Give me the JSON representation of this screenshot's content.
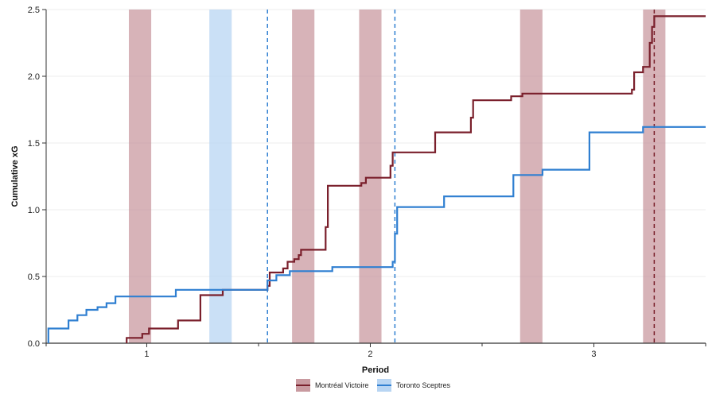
{
  "chart_data": {
    "type": "line",
    "xlabel": "Period",
    "ylabel": "Cumulative xG",
    "xlim": [
      0.55,
      3.5
    ],
    "ylim": [
      0,
      2.5
    ],
    "xticks": [
      1,
      2,
      3
    ],
    "yticks": [
      0.0,
      0.5,
      1.0,
      1.5,
      2.0,
      2.5
    ],
    "ytick_labels": [
      "0.0",
      "0.5",
      "1.0",
      "1.5",
      "2.0",
      "2.5"
    ],
    "grid": "horizontal",
    "legend_position": "bottom",
    "series": [
      {
        "name": "Montréal Victoire",
        "color": "#7a1f2b",
        "step": true,
        "points": [
          [
            0.91,
            0.0
          ],
          [
            0.91,
            0.04
          ],
          [
            0.98,
            0.04
          ],
          [
            0.98,
            0.07
          ],
          [
            1.01,
            0.07
          ],
          [
            1.01,
            0.11
          ],
          [
            1.14,
            0.11
          ],
          [
            1.14,
            0.17
          ],
          [
            1.24,
            0.17
          ],
          [
            1.24,
            0.36
          ],
          [
            1.34,
            0.36
          ],
          [
            1.34,
            0.4
          ],
          [
            1.54,
            0.4
          ],
          [
            1.54,
            0.43
          ],
          [
            1.55,
            0.43
          ],
          [
            1.55,
            0.53
          ],
          [
            1.61,
            0.53
          ],
          [
            1.61,
            0.56
          ],
          [
            1.63,
            0.56
          ],
          [
            1.63,
            0.61
          ],
          [
            1.66,
            0.61
          ],
          [
            1.66,
            0.63
          ],
          [
            1.68,
            0.63
          ],
          [
            1.68,
            0.66
          ],
          [
            1.69,
            0.66
          ],
          [
            1.69,
            0.7
          ],
          [
            1.8,
            0.7
          ],
          [
            1.8,
            0.87
          ],
          [
            1.81,
            0.87
          ],
          [
            1.81,
            1.18
          ],
          [
            1.96,
            1.18
          ],
          [
            1.96,
            1.2
          ],
          [
            1.98,
            1.2
          ],
          [
            1.98,
            1.24
          ],
          [
            2.09,
            1.24
          ],
          [
            2.09,
            1.33
          ],
          [
            2.1,
            1.33
          ],
          [
            2.1,
            1.43
          ],
          [
            2.29,
            1.43
          ],
          [
            2.29,
            1.58
          ],
          [
            2.45,
            1.58
          ],
          [
            2.45,
            1.69
          ],
          [
            2.46,
            1.69
          ],
          [
            2.46,
            1.82
          ],
          [
            2.63,
            1.82
          ],
          [
            2.63,
            1.85
          ],
          [
            2.68,
            1.85
          ],
          [
            2.68,
            1.87
          ],
          [
            3.17,
            1.87
          ],
          [
            3.17,
            1.9
          ],
          [
            3.18,
            1.9
          ],
          [
            3.18,
            2.03
          ],
          [
            3.22,
            2.03
          ],
          [
            3.22,
            2.07
          ],
          [
            3.25,
            2.07
          ],
          [
            3.25,
            2.25
          ],
          [
            3.26,
            2.25
          ],
          [
            3.26,
            2.37
          ],
          [
            3.27,
            2.37
          ],
          [
            3.27,
            2.45
          ],
          [
            3.5,
            2.45
          ]
        ]
      },
      {
        "name": "Toronto Sceptres",
        "color": "#2f7fd1",
        "step": true,
        "points": [
          [
            0.56,
            0.0
          ],
          [
            0.56,
            0.11
          ],
          [
            0.65,
            0.11
          ],
          [
            0.65,
            0.17
          ],
          [
            0.69,
            0.17
          ],
          [
            0.69,
            0.21
          ],
          [
            0.73,
            0.21
          ],
          [
            0.73,
            0.25
          ],
          [
            0.78,
            0.25
          ],
          [
            0.78,
            0.27
          ],
          [
            0.82,
            0.27
          ],
          [
            0.82,
            0.3
          ],
          [
            0.86,
            0.3
          ],
          [
            0.86,
            0.35
          ],
          [
            1.13,
            0.35
          ],
          [
            1.13,
            0.4
          ],
          [
            1.54,
            0.4
          ],
          [
            1.54,
            0.47
          ],
          [
            1.58,
            0.47
          ],
          [
            1.58,
            0.51
          ],
          [
            1.64,
            0.51
          ],
          [
            1.64,
            0.54
          ],
          [
            1.83,
            0.54
          ],
          [
            1.83,
            0.57
          ],
          [
            2.1,
            0.57
          ],
          [
            2.1,
            0.61
          ],
          [
            2.11,
            0.61
          ],
          [
            2.11,
            0.82
          ],
          [
            2.12,
            0.82
          ],
          [
            2.12,
            1.02
          ],
          [
            2.33,
            1.02
          ],
          [
            2.33,
            1.1
          ],
          [
            2.64,
            1.1
          ],
          [
            2.64,
            1.26
          ],
          [
            2.77,
            1.26
          ],
          [
            2.77,
            1.3
          ],
          [
            2.98,
            1.3
          ],
          [
            2.98,
            1.58
          ],
          [
            3.22,
            1.58
          ],
          [
            3.22,
            1.62
          ],
          [
            3.5,
            1.62
          ]
        ]
      }
    ],
    "bands": [
      {
        "team": "Montréal Victoire",
        "color": "#c99aa0",
        "x": [
          0.92,
          1.02
        ]
      },
      {
        "team": "Toronto Sceptres",
        "color": "#b8d5f3",
        "x": [
          1.28,
          1.38
        ]
      },
      {
        "team": "Montréal Victoire",
        "color": "#c99aa0",
        "x": [
          1.65,
          1.75
        ]
      },
      {
        "team": "Montréal Victoire",
        "color": "#c99aa0",
        "x": [
          1.95,
          2.05
        ]
      },
      {
        "team": "Montréal Victoire",
        "color": "#c99aa0",
        "x": [
          2.67,
          2.77
        ]
      },
      {
        "team": "Montréal Victoire",
        "color": "#c99aa0",
        "x": [
          3.22,
          3.32
        ]
      }
    ],
    "goal_lines": [
      {
        "team": "Toronto Sceptres",
        "color": "#2f7fd1",
        "x": 1.54
      },
      {
        "team": "Toronto Sceptres",
        "color": "#2f7fd1",
        "x": 2.11
      },
      {
        "team": "Montréal Victoire",
        "color": "#7a1f2b",
        "x": 3.27
      }
    ]
  }
}
